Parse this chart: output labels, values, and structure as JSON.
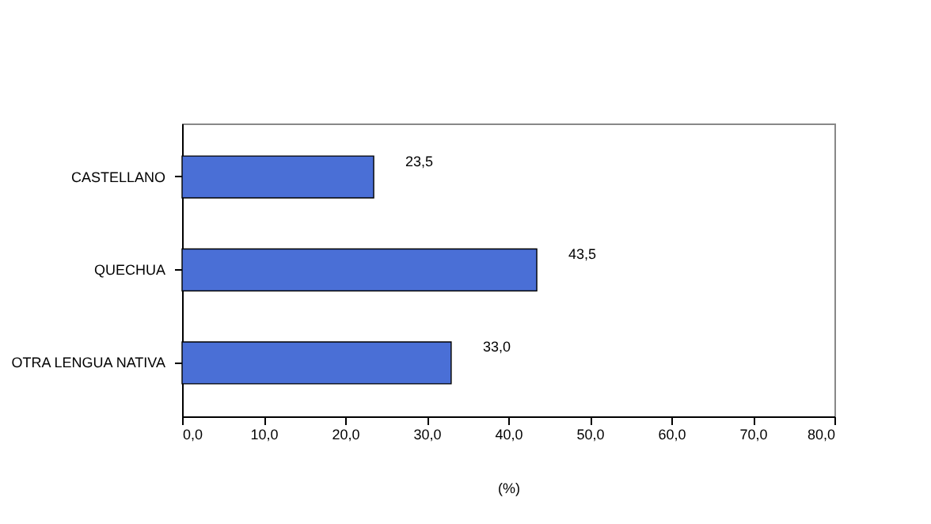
{
  "chart_data": {
    "type": "bar",
    "orientation": "horizontal",
    "categories": [
      "CASTELLANO",
      "QUECHUA",
      "OTRA LENGUA NATIVA"
    ],
    "values": [
      23.5,
      43.5,
      33.0
    ],
    "value_labels": [
      "23,5",
      "43,5",
      "33,0"
    ],
    "color": "#4a6fd6",
    "xlim": [
      0,
      80
    ],
    "xticks": [
      {
        "value": 0,
        "label": "0,0"
      },
      {
        "value": 10,
        "label": "10,0"
      },
      {
        "value": 20,
        "label": "20,0"
      },
      {
        "value": 30,
        "label": "30,0"
      },
      {
        "value": 40,
        "label": "40,0"
      },
      {
        "value": 50,
        "label": "50,0"
      },
      {
        "value": 60,
        "label": "60,0"
      },
      {
        "value": 70,
        "label": "70,0"
      },
      {
        "value": 80,
        "label": "80,0"
      }
    ],
    "xlabel": "(%)",
    "grid": false
  }
}
